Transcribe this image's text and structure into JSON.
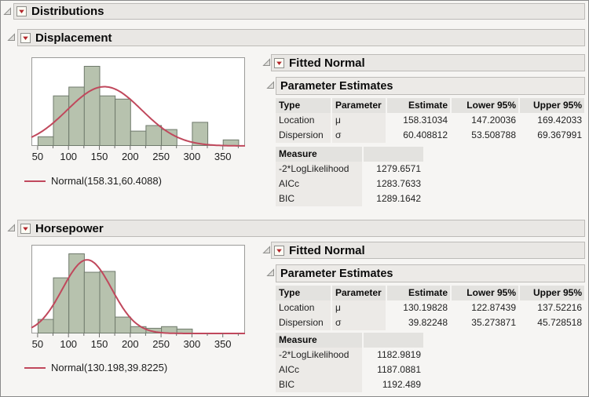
{
  "root": {
    "title": "Distributions"
  },
  "sections": [
    {
      "title": "Displacement",
      "legend_label": "Normal(158.31,60.4088)",
      "fitted": {
        "title": "Fitted Normal",
        "param_title": "Parameter Estimates",
        "columns": [
          "Type",
          "Parameter",
          "Estimate",
          "Lower 95%",
          "Upper 95%"
        ],
        "rows": [
          {
            "type": "Location",
            "parameter": "μ",
            "estimate": "158.31034",
            "lower": "147.20036",
            "upper": "169.42033"
          },
          {
            "type": "Dispersion",
            "parameter": "σ",
            "estimate": "60.408812",
            "lower": "53.508788",
            "upper": "69.367991"
          }
        ],
        "measure_title": "Measure",
        "measures": [
          {
            "label": "-2*LogLikelihood",
            "value": "1279.6571"
          },
          {
            "label": "AICc",
            "value": "1283.7633"
          },
          {
            "label": "BIC",
            "value": "1289.1642"
          }
        ]
      }
    },
    {
      "title": "Horsepower",
      "legend_label": "Normal(130.198,39.8225)",
      "fitted": {
        "title": "Fitted Normal",
        "param_title": "Parameter Estimates",
        "columns": [
          "Type",
          "Parameter",
          "Estimate",
          "Lower 95%",
          "Upper 95%"
        ],
        "rows": [
          {
            "type": "Location",
            "parameter": "μ",
            "estimate": "130.19828",
            "lower": "122.87439",
            "upper": "137.52216"
          },
          {
            "type": "Dispersion",
            "parameter": "σ",
            "estimate": "39.82248",
            "lower": "35.273871",
            "upper": "45.728518"
          }
        ],
        "measure_title": "Measure",
        "measures": [
          {
            "label": "-2*LogLikelihood",
            "value": "1182.9819"
          },
          {
            "label": "AICc",
            "value": "1187.0881"
          },
          {
            "label": "BIC",
            "value": "1192.489"
          }
        ]
      }
    }
  ],
  "chart_data": [
    {
      "type": "bar",
      "subtype": "histogram-with-normal-fit",
      "variable": "Displacement",
      "title": "",
      "xlabel": "",
      "ylabel": "",
      "x_range": [
        40,
        386
      ],
      "x_ticks": [
        50,
        100,
        150,
        200,
        250,
        300,
        350
      ],
      "minor_tick_step": 25,
      "bin_start": 50,
      "bin_width": 25,
      "bin_edges": [
        50,
        75,
        100,
        125,
        150,
        175,
        200,
        225,
        250,
        275,
        300,
        325,
        350,
        375
      ],
      "relative_heights": [
        0.12,
        0.63,
        0.74,
        1.0,
        0.63,
        0.59,
        0.19,
        0.26,
        0.21,
        0,
        0.3,
        0,
        0.08
      ],
      "normal_fit": {
        "mu": 158.31,
        "sigma": 60.4088,
        "peak_relative": 0.74
      },
      "bar_fill": "#b7c2ae",
      "bar_stroke": "#6f7a6c",
      "curve_color": "#c0485c",
      "grid": false
    },
    {
      "type": "bar",
      "subtype": "histogram-with-normal-fit",
      "variable": "Horsepower",
      "title": "",
      "xlabel": "",
      "ylabel": "",
      "x_range": [
        40,
        386
      ],
      "x_ticks": [
        50,
        100,
        150,
        200,
        250,
        300,
        350
      ],
      "minor_tick_step": 25,
      "bin_start": 50,
      "bin_width": 25,
      "bin_edges": [
        50,
        75,
        100,
        125,
        150,
        175,
        200,
        225,
        250,
        275,
        300
      ],
      "relative_heights": [
        0.18,
        0.7,
        1.0,
        0.77,
        0.78,
        0.21,
        0.09,
        0.07,
        0.09,
        0.06
      ],
      "normal_fit": {
        "mu": 130.198,
        "sigma": 39.8225,
        "peak_relative": 0.92
      },
      "bar_fill": "#b7c2ae",
      "bar_stroke": "#6f7a6c",
      "curve_color": "#c0485c",
      "grid": false
    }
  ],
  "icons": {
    "disclosure_open": "disclosure-triangle",
    "red_menu": "red-triangle-menu"
  },
  "colors": {
    "header_bar": "#e9e7e4",
    "table_header_bg": "#e3e2df",
    "label_cell_bg": "#eceae7",
    "bar_fill": "#b7c2ae",
    "curve_red": "#c0485c",
    "menu_triangle_red": "#b3252b",
    "background": "#f6f5f3"
  }
}
